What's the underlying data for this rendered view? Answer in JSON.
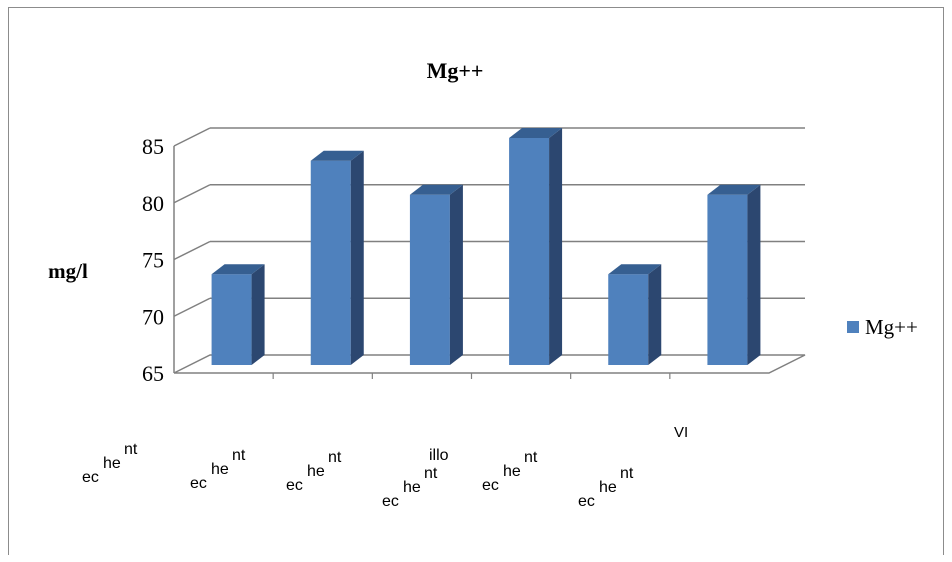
{
  "chart_data": {
    "type": "bar",
    "title": "Mg++",
    "ylabel": "mg/l",
    "xlabel": "",
    "ylim": [
      65,
      85
    ],
    "yticks": [
      65,
      70,
      75,
      80,
      85
    ],
    "grid": true,
    "legend_position": "right",
    "colors": {
      "bar_front": "#4f81bd",
      "bar_side": "#2c4770",
      "bar_top": "#365f91",
      "grid": "#808080",
      "text": "#000000"
    },
    "series": [
      {
        "name": "Mg++",
        "values": [
          73,
          83,
          80,
          85,
          73,
          80
        ]
      }
    ],
    "category_labels": [
      {
        "parts": [
          "ec",
          "he",
          "nt"
        ]
      },
      {
        "parts": [
          "ec",
          "he",
          "nt"
        ]
      },
      {
        "parts": [
          "ec",
          "he",
          "nt"
        ]
      },
      {
        "parts": [
          "ec",
          "he",
          "nt",
          "illo"
        ]
      },
      {
        "parts": [
          "ec",
          "he",
          "nt"
        ]
      },
      {
        "parts": [
          "ec",
          "he",
          "nt"
        ]
      }
    ],
    "extra_axis_label": "VI"
  }
}
